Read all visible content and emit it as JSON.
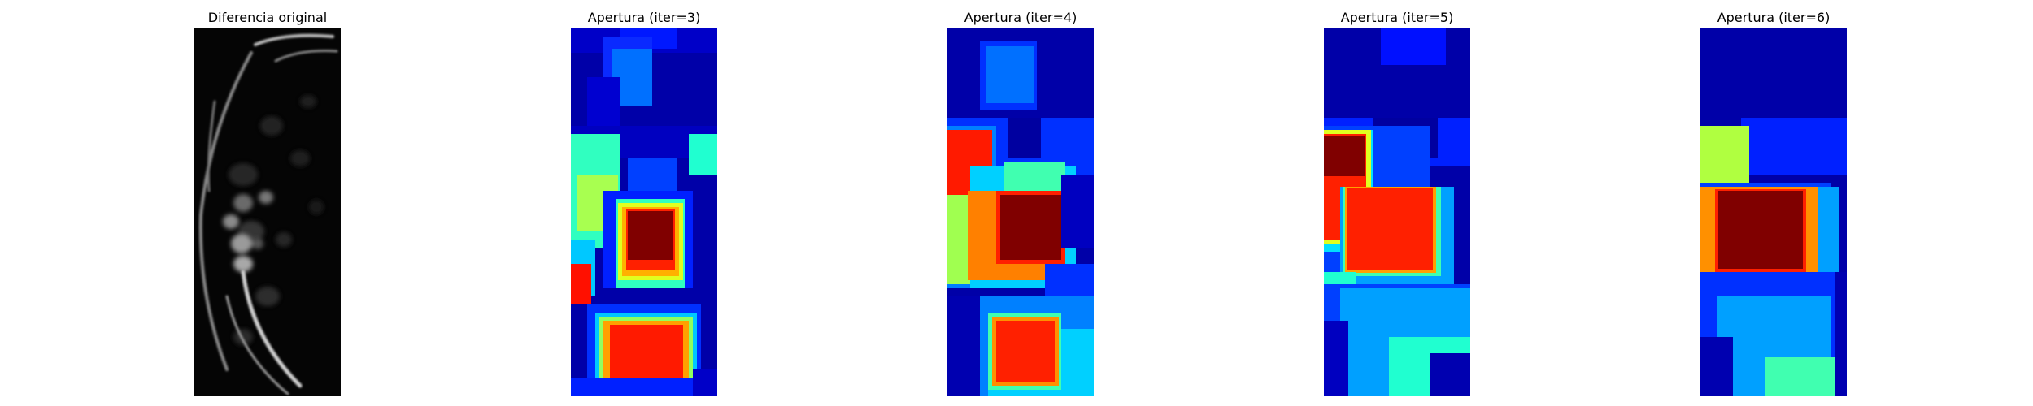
{
  "panels": [
    {
      "title": "Diferencia original",
      "colormap": "gray"
    },
    {
      "title": "Apertura (iter=3)",
      "colormap": "jet"
    },
    {
      "title": "Apertura (iter=4)",
      "colormap": "jet"
    },
    {
      "title": "Apertura (iter=5)",
      "colormap": "jet"
    },
    {
      "title": "Apertura (iter=6)",
      "colormap": "jet"
    }
  ]
}
